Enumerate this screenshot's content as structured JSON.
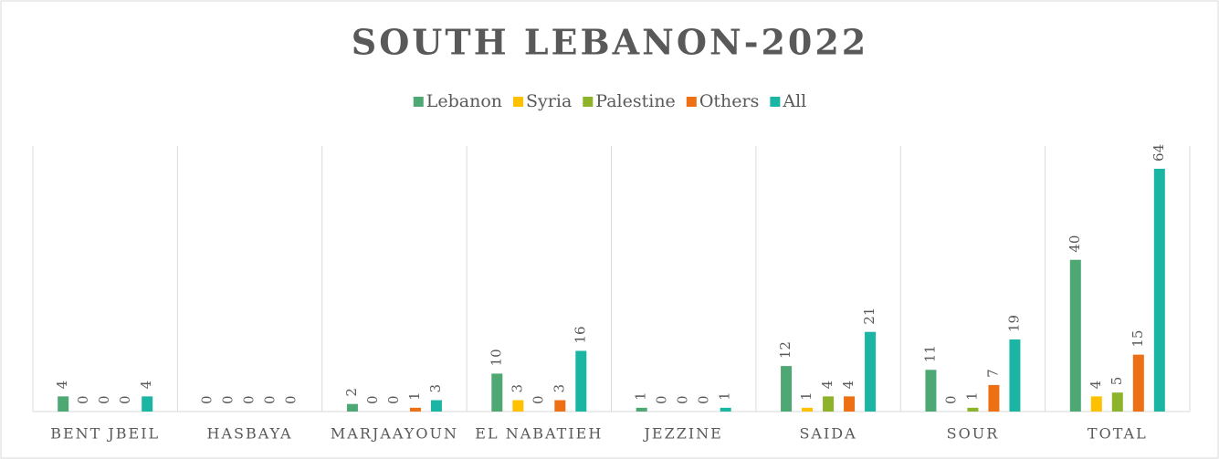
{
  "chart_data": {
    "type": "bar",
    "title": "SOUTH LEBANON-2022",
    "categories": [
      "BENT JBEIL",
      "HASBAYA",
      "MARJAAYOUN",
      "EL NABATIEH",
      "JEZZINE",
      "SAIDA",
      "SOUR",
      "TOTAL"
    ],
    "series": [
      {
        "name": "Lebanon",
        "color": "#4ea874",
        "values": [
          4,
          0,
          2,
          10,
          1,
          12,
          11,
          40
        ]
      },
      {
        "name": "Syria",
        "color": "#ffc000",
        "values": [
          0,
          0,
          0,
          3,
          0,
          1,
          0,
          4
        ]
      },
      {
        "name": "Palestine",
        "color": "#8db32a",
        "values": [
          0,
          0,
          0,
          0,
          0,
          4,
          1,
          5
        ]
      },
      {
        "name": "Others",
        "color": "#ee7014",
        "values": [
          0,
          0,
          1,
          3,
          0,
          4,
          7,
          15
        ]
      },
      {
        "name": "All",
        "color": "#1bb5a4",
        "values": [
          4,
          0,
          3,
          16,
          1,
          21,
          19,
          64
        ]
      }
    ],
    "ylim": [
      0,
      70
    ],
    "legend": "top"
  }
}
